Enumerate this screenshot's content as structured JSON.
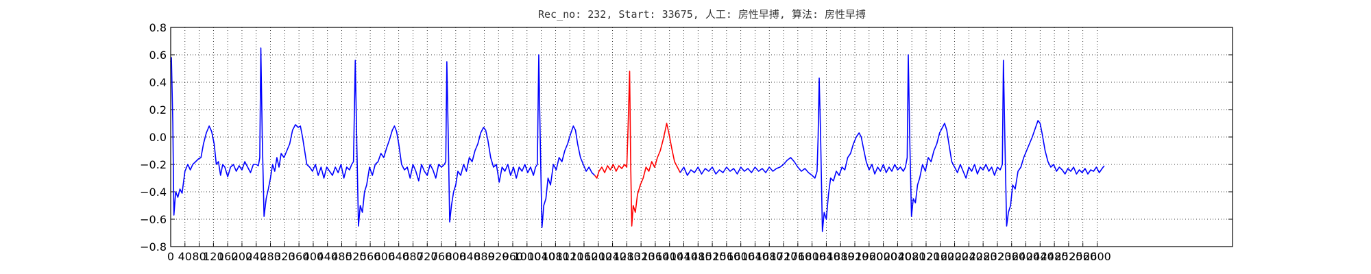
{
  "chart_data": {
    "type": "line",
    "title": "Rec_no: 232, Start: 33675, 人工: 房性早搏, 算法: 房性早搏",
    "xlim": [
      0,
      2980
    ],
    "ylim": [
      -0.8,
      0.8
    ],
    "xticks": [
      0,
      40,
      80,
      120,
      160,
      200,
      240,
      280,
      320,
      360,
      400,
      440,
      480,
      520,
      560,
      600,
      640,
      680,
      720,
      760,
      800,
      840,
      880,
      920,
      960,
      1000,
      1040,
      1080,
      1120,
      1160,
      1200,
      1240,
      1280,
      1320,
      1360,
      1400,
      1440,
      1480,
      1520,
      1560,
      1600,
      1640,
      1680,
      1720,
      1760,
      1800,
      1840,
      1880,
      1920,
      1960,
      2000,
      2040,
      2080,
      2120,
      2160,
      2200,
      2240,
      2280,
      2320,
      2360,
      2400,
      2440,
      2480,
      2520,
      2560,
      2600
    ],
    "yticks": [
      {
        "value": -0.8,
        "label": "−0.8"
      },
      {
        "value": -0.6,
        "label": "−0.6"
      },
      {
        "value": -0.4,
        "label": "−0.4"
      },
      {
        "value": -0.2,
        "label": "−0.2"
      },
      {
        "value": 0,
        "label": "0.0"
      },
      0.2,
      0.4,
      0.6,
      0.8
    ],
    "grid": true,
    "series": [
      {
        "color": "#0000ff",
        "x": [
          0,
          2,
          6,
          9,
          14,
          20,
          26,
          32,
          40,
          48,
          55,
          62,
          70,
          78,
          85,
          92,
          100,
          108,
          115,
          122,
          128,
          134,
          140,
          146,
          152,
          160,
          168,
          176,
          184,
          192,
          200,
          208,
          216,
          224,
          232,
          240,
          246,
          250,
          253,
          257,
          262,
          268,
          274,
          280,
          286,
          292,
          298,
          304,
          310,
          318,
          326,
          334,
          342,
          350,
          358,
          364,
          370,
          376,
          382,
          390,
          398,
          406,
          414,
          422,
          430,
          438,
          446,
          454,
          462,
          470,
          478,
          486,
          494,
          502,
          508,
          513,
          518,
          522,
          527,
          532,
          538,
          544,
          550,
          558,
          566,
          574,
          582,
          590,
          598,
          606,
          614,
          622,
          628,
          634,
          640,
          648,
          656,
          664,
          672,
          680,
          688,
          696,
          704,
          712,
          720,
          728,
          736,
          744,
          752,
          760,
          768,
          772,
          775,
          779,
          783,
          788,
          794,
          800,
          806,
          814,
          822,
          830,
          838,
          846,
          854,
          862,
          870,
          878,
          884,
          890,
          898,
          906,
          914,
          922,
          930,
          938,
          946,
          954,
          962,
          970,
          978,
          986,
          994,
          1002,
          1010,
          1018,
          1024,
          1029,
          1033,
          1037,
          1042,
          1047,
          1053,
          1059,
          1066,
          1074,
          1082,
          1090,
          1098,
          1106,
          1114,
          1122,
          1130,
          1136,
          1142,
          1150,
          1158,
          1166,
          1174,
          1182,
          1190
        ],
        "values": [
          0.55,
          0.58,
          0.1,
          -0.57,
          -0.4,
          -0.44,
          -0.38,
          -0.41,
          -0.25,
          -0.2,
          -0.24,
          -0.2,
          -0.18,
          -0.16,
          -0.15,
          -0.05,
          0.03,
          0.08,
          0.04,
          -0.05,
          -0.2,
          -0.18,
          -0.28,
          -0.2,
          -0.22,
          -0.29,
          -0.22,
          -0.2,
          -0.25,
          -0.21,
          -0.24,
          -0.18,
          -0.22,
          -0.26,
          -0.2,
          -0.2,
          -0.21,
          -0.15,
          0.65,
          0.0,
          -0.58,
          -0.45,
          -0.38,
          -0.3,
          -0.2,
          -0.25,
          -0.15,
          -0.22,
          -0.12,
          -0.15,
          -0.1,
          -0.05,
          0.05,
          0.09,
          0.07,
          0.08,
          0.0,
          -0.1,
          -0.2,
          -0.22,
          -0.25,
          -0.2,
          -0.28,
          -0.22,
          -0.3,
          -0.22,
          -0.25,
          -0.28,
          -0.22,
          -0.26,
          -0.2,
          -0.3,
          -0.22,
          -0.24,
          -0.2,
          -0.18,
          0.56,
          0.0,
          -0.65,
          -0.5,
          -0.55,
          -0.4,
          -0.35,
          -0.22,
          -0.28,
          -0.2,
          -0.18,
          -0.12,
          -0.15,
          -0.08,
          -0.02,
          0.05,
          0.08,
          0.04,
          -0.05,
          -0.2,
          -0.24,
          -0.22,
          -0.3,
          -0.2,
          -0.25,
          -0.32,
          -0.2,
          -0.25,
          -0.28,
          -0.2,
          -0.24,
          -0.3,
          -0.2,
          -0.22,
          -0.2,
          -0.18,
          0.55,
          0.0,
          -0.62,
          -0.5,
          -0.4,
          -0.35,
          -0.25,
          -0.28,
          -0.2,
          -0.25,
          -0.15,
          -0.18,
          -0.1,
          -0.05,
          0.03,
          0.07,
          0.05,
          -0.02,
          -0.15,
          -0.22,
          -0.2,
          -0.33,
          -0.22,
          -0.25,
          -0.2,
          -0.28,
          -0.22,
          -0.3,
          -0.22,
          -0.25,
          -0.2,
          -0.26,
          -0.22,
          -0.28,
          -0.22,
          -0.2,
          0.6,
          0.0,
          -0.66,
          -0.5,
          -0.45,
          -0.3,
          -0.35,
          -0.2,
          -0.24,
          -0.15,
          -0.18,
          -0.1,
          -0.05,
          0.02,
          0.08,
          0.05,
          -0.05,
          -0.15,
          -0.2,
          -0.25,
          -0.22,
          -0.26,
          -0.28
        ]
      },
      {
        "color": "#ff0000",
        "x": [
          1190,
          1196,
          1202,
          1210,
          1218,
          1226,
          1234,
          1242,
          1250,
          1258,
          1266,
          1274,
          1280,
          1284,
          1288,
          1291,
          1294,
          1298,
          1304,
          1310,
          1318,
          1326,
          1334,
          1342,
          1350,
          1358,
          1366,
          1374,
          1382,
          1388,
          1392,
          1398,
          1406,
          1414,
          1422,
          1430
        ],
        "values": [
          -0.28,
          -0.3,
          -0.25,
          -0.22,
          -0.26,
          -0.21,
          -0.24,
          -0.2,
          -0.25,
          -0.21,
          -0.23,
          -0.2,
          -0.22,
          0.1,
          0.48,
          -0.2,
          -0.65,
          -0.5,
          -0.55,
          -0.42,
          -0.35,
          -0.3,
          -0.22,
          -0.25,
          -0.18,
          -0.22,
          -0.15,
          -0.1,
          -0.02,
          0.05,
          0.1,
          0.03,
          -0.08,
          -0.18,
          -0.22,
          -0.26
        ]
      },
      {
        "color": "#0000ff",
        "x": [
          1430,
          1440,
          1450,
          1460,
          1470,
          1480,
          1490,
          1500,
          1510,
          1520,
          1530,
          1540,
          1550,
          1560,
          1570,
          1580,
          1590,
          1600,
          1610,
          1620,
          1630,
          1640,
          1650,
          1660,
          1670,
          1680,
          1690,
          1700,
          1710,
          1720,
          1730,
          1740,
          1750,
          1760,
          1770,
          1780,
          1790,
          1800,
          1808,
          1814,
          1817,
          1820,
          1824,
          1829,
          1834,
          1840,
          1846,
          1852,
          1860,
          1868,
          1876,
          1884,
          1892,
          1900,
          1908,
          1916,
          1924,
          1932,
          1938,
          1944,
          1952,
          1960,
          1968,
          1976,
          1984,
          1992,
          2000,
          2008,
          2016,
          2024,
          2032,
          2040,
          2048,
          2056,
          2062,
          2067,
          2070,
          2074,
          2079,
          2084,
          2090,
          2096,
          2102,
          2110,
          2118,
          2126,
          2134,
          2142,
          2150,
          2158,
          2166,
          2172,
          2178,
          2184,
          2192,
          2200,
          2208,
          2216,
          2224,
          2232,
          2240,
          2248,
          2256,
          2264,
          2272,
          2280,
          2288,
          2296,
          2304,
          2312,
          2320,
          2328,
          2334,
          2337,
          2341,
          2346,
          2351,
          2357,
          2363,
          2370,
          2378,
          2386,
          2394,
          2402,
          2410,
          2418,
          2426,
          2434,
          2440,
          2446,
          2454,
          2462,
          2470,
          2478,
          2486,
          2494,
          2502,
          2510,
          2518,
          2526,
          2534,
          2542,
          2550,
          2558,
          2566,
          2574,
          2582,
          2590,
          2598,
          2606,
          2614,
          2620
        ],
        "values": [
          -0.26,
          -0.22,
          -0.28,
          -0.24,
          -0.26,
          -0.22,
          -0.27,
          -0.23,
          -0.25,
          -0.22,
          -0.27,
          -0.24,
          -0.26,
          -0.22,
          -0.25,
          -0.23,
          -0.27,
          -0.22,
          -0.25,
          -0.23,
          -0.26,
          -0.22,
          -0.25,
          -0.23,
          -0.26,
          -0.22,
          -0.25,
          -0.23,
          -0.22,
          -0.2,
          -0.17,
          -0.15,
          -0.18,
          -0.22,
          -0.25,
          -0.23,
          -0.26,
          -0.28,
          -0.3,
          -0.25,
          0.0,
          0.43,
          0.0,
          -0.69,
          -0.55,
          -0.6,
          -0.42,
          -0.3,
          -0.32,
          -0.25,
          -0.28,
          -0.22,
          -0.24,
          -0.15,
          -0.12,
          -0.05,
          0.0,
          0.03,
          0.0,
          -0.08,
          -0.18,
          -0.24,
          -0.2,
          -0.27,
          -0.22,
          -0.25,
          -0.2,
          -0.26,
          -0.22,
          -0.25,
          -0.2,
          -0.24,
          -0.22,
          -0.25,
          -0.22,
          -0.15,
          0.6,
          0.0,
          -0.58,
          -0.45,
          -0.48,
          -0.35,
          -0.3,
          -0.2,
          -0.25,
          -0.15,
          -0.18,
          -0.1,
          -0.05,
          0.03,
          0.07,
          0.1,
          0.05,
          -0.05,
          -0.18,
          -0.22,
          -0.26,
          -0.2,
          -0.25,
          -0.3,
          -0.22,
          -0.25,
          -0.2,
          -0.27,
          -0.22,
          -0.24,
          -0.2,
          -0.25,
          -0.22,
          -0.28,
          -0.22,
          -0.24,
          -0.2,
          0.56,
          0.0,
          -0.65,
          -0.55,
          -0.5,
          -0.35,
          -0.38,
          -0.25,
          -0.22,
          -0.15,
          -0.1,
          -0.05,
          0.0,
          0.06,
          0.12,
          0.1,
          0.02,
          -0.1,
          -0.18,
          -0.22,
          -0.2,
          -0.25,
          -0.22,
          -0.24,
          -0.27,
          -0.23,
          -0.25,
          -0.22,
          -0.27,
          -0.24,
          -0.26,
          -0.23,
          -0.27,
          -0.24,
          -0.25,
          -0.22,
          -0.26,
          -0.23,
          -0.21
        ]
      }
    ]
  }
}
